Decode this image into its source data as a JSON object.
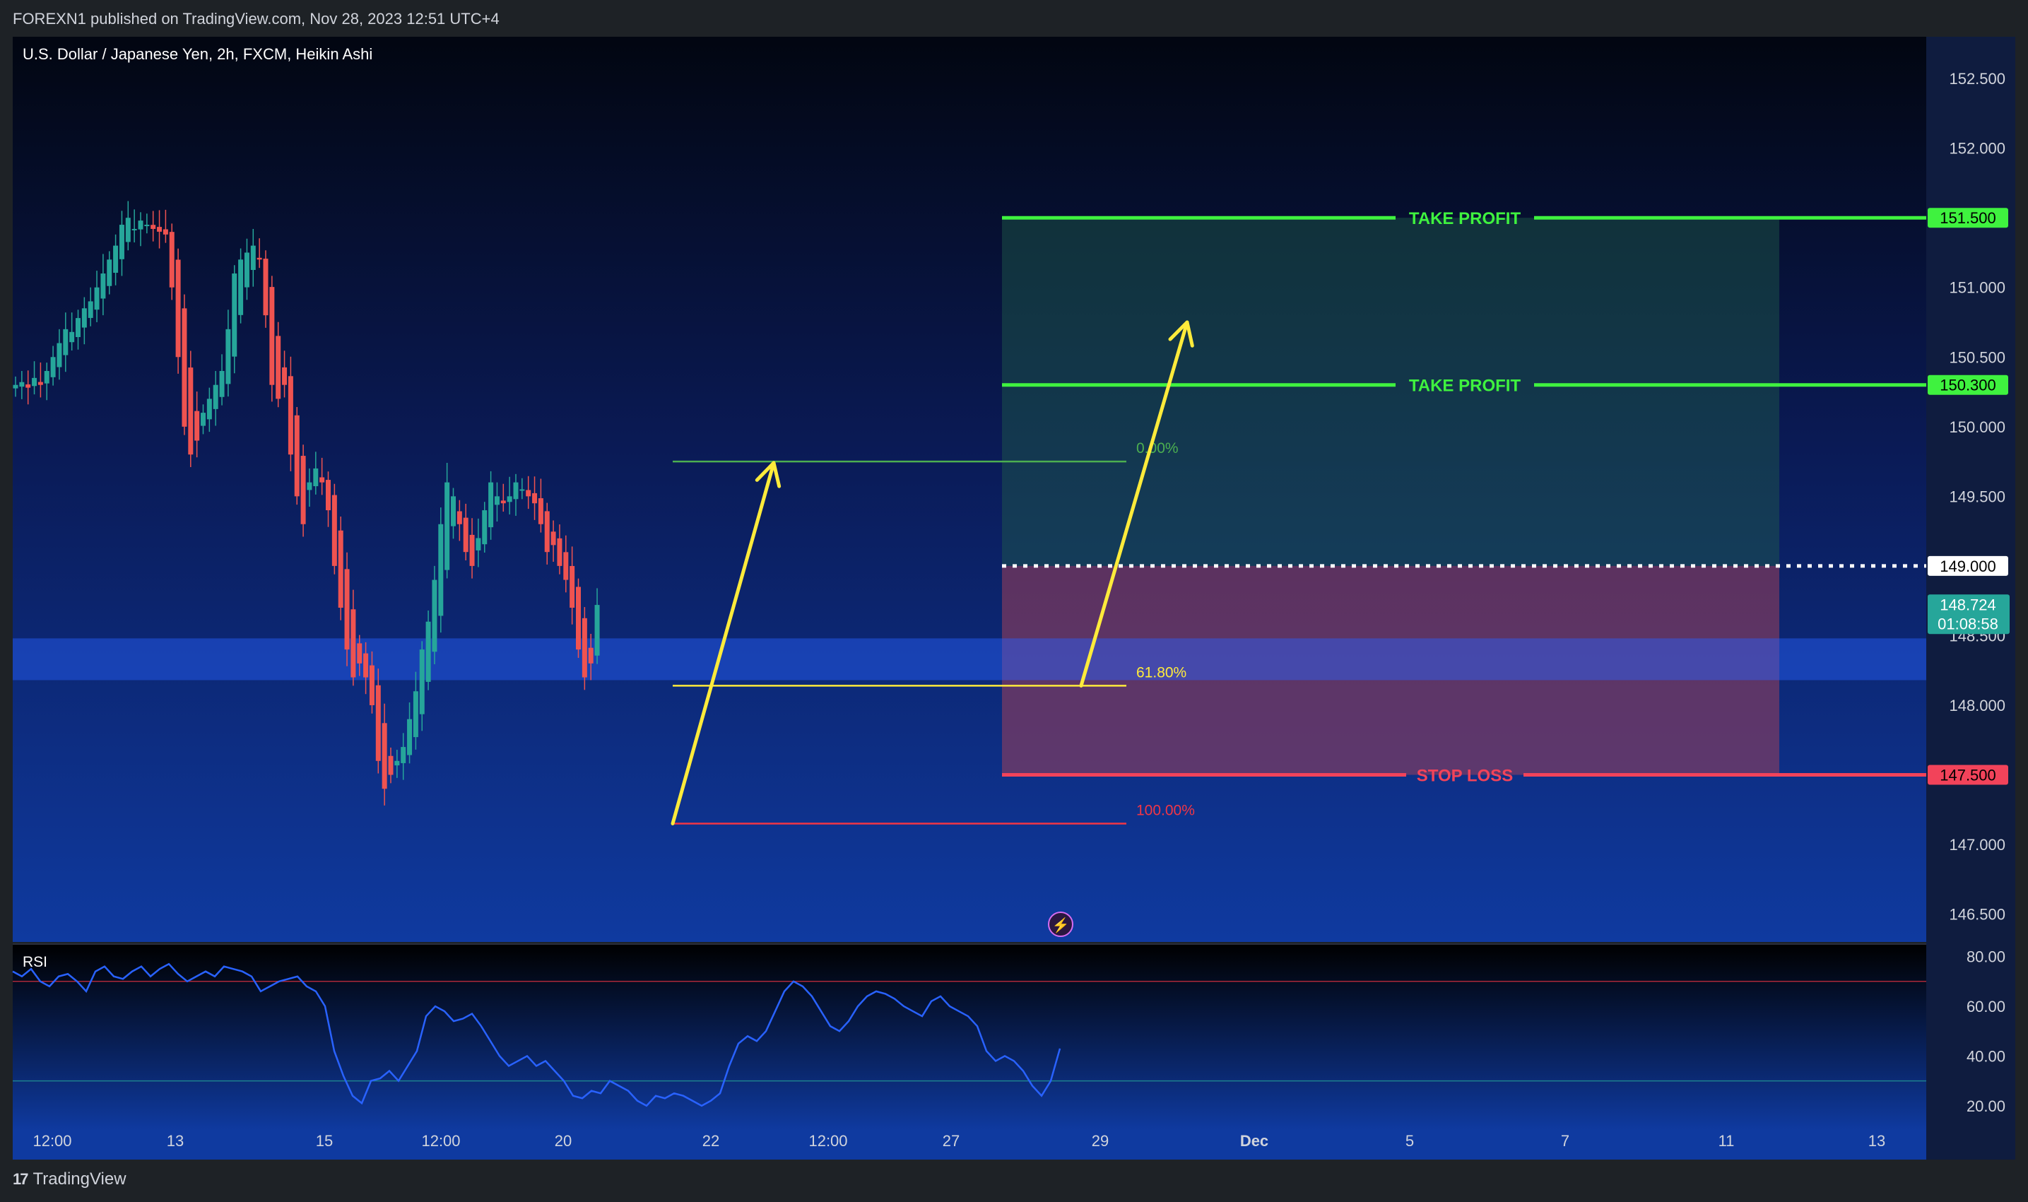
{
  "header": {
    "published": "FOREXN1 published on TradingView.com, Nov 28, 2023 12:51 UTC+4"
  },
  "footer": {
    "logo_mark": "17",
    "logo_text": "TradingView"
  },
  "colors": {
    "up": "#26a69a",
    "down": "#ef5350",
    "take_profit": "#3ff23f",
    "stop_loss": "#f2435a",
    "fib_top": "#4caf50",
    "fib_mid": "#ffeb3b",
    "fib_bottom": "#f23645",
    "arrow": "#ffeb3b",
    "rsi_line": "#2962ff"
  },
  "chart_data": [
    {
      "type": "candlestick",
      "title": "U.S. Dollar / Japanese Yen, 2h, FXCM, Heikin Ashi",
      "ylim": [
        146.3,
        152.8
      ],
      "y_ticks": [
        "152.500",
        "152.000",
        "151.500",
        "151.000",
        "150.500",
        "150.000",
        "149.500",
        "149.000",
        "148.500",
        "148.000",
        "147.500",
        "147.000",
        "146.500"
      ],
      "x_ticks": [
        "12:00",
        "13",
        "15",
        "12:00",
        "20",
        "22",
        "12:00",
        "27",
        "29",
        "Dec",
        "5",
        "7",
        "11",
        "13"
      ],
      "current_price": "148.724",
      "countdown": "01:08:58",
      "candles_close_trajectory": [
        150.3,
        150.32,
        150.28,
        150.35,
        150.3,
        150.4,
        150.5,
        150.6,
        150.7,
        150.68,
        150.78,
        150.85,
        150.9,
        151.0,
        151.1,
        151.2,
        151.3,
        151.45,
        151.5,
        151.42,
        151.48,
        151.45,
        151.42,
        151.4,
        151.38,
        151.0,
        150.5,
        150.0,
        149.8,
        149.9,
        150.1,
        150.2,
        150.3,
        150.4,
        150.7,
        151.1,
        151.2,
        151.25,
        151.3,
        151.2,
        150.8,
        150.3,
        150.2,
        150.3,
        149.8,
        149.5,
        149.3,
        149.6,
        149.7,
        149.6,
        149.4,
        149.0,
        148.7,
        148.4,
        148.2,
        148.3,
        148.2,
        148.0,
        147.6,
        147.4,
        147.5,
        147.6,
        147.7,
        147.9,
        148.1,
        148.4,
        148.6,
        148.9,
        149.3,
        149.6,
        149.5,
        149.3,
        149.1,
        149.0,
        149.2,
        149.4,
        149.6,
        149.5,
        149.45,
        149.5,
        149.6,
        149.55,
        149.5,
        149.45,
        149.3,
        149.1,
        149.15,
        149.0,
        148.9,
        148.7,
        148.4,
        148.2,
        148.3,
        148.72
      ],
      "levels": [
        {
          "label": "TAKE PROFIT",
          "price": 151.5,
          "tag": "151.500"
        },
        {
          "label": "TAKE PROFIT",
          "price": 150.3,
          "tag": "150.300"
        },
        {
          "label": "STOP LOSS",
          "price": 147.5,
          "tag": "147.500"
        },
        {
          "label": "",
          "price": 149.0,
          "tag": "149.000"
        }
      ],
      "fibonacci": [
        {
          "label": "0.00%",
          "price": 149.75
        },
        {
          "label": "61.80%",
          "price": 148.14
        },
        {
          "label": "100.00%",
          "price": 147.15
        }
      ],
      "zone": {
        "from": 148.18,
        "to": 148.48
      }
    },
    {
      "type": "line",
      "title": "RSI",
      "ylim": [
        10,
        85
      ],
      "y_ticks": [
        "80.00",
        "60.00",
        "40.00",
        "20.00"
      ],
      "bands": [
        70,
        30
      ],
      "values": [
        74,
        72,
        75,
        70,
        68,
        72,
        73,
        70,
        66,
        74,
        76,
        72,
        71,
        74,
        76,
        72,
        75,
        77,
        73,
        70,
        72,
        74,
        72,
        76,
        75,
        74,
        72,
        66,
        68,
        70,
        71,
        72,
        68,
        66,
        60,
        42,
        32,
        24,
        21,
        30,
        31,
        34,
        30,
        36,
        42,
        56,
        60,
        58,
        54,
        55,
        57,
        52,
        46,
        40,
        36,
        38,
        40,
        36,
        38,
        34,
        30,
        24,
        23,
        26,
        25,
        30,
        28,
        26,
        22,
        20,
        24,
        23,
        25,
        24,
        22,
        20,
        22,
        25,
        36,
        45,
        48,
        46,
        50,
        58,
        66,
        70,
        68,
        64,
        58,
        52,
        50,
        54,
        60,
        64,
        66,
        65,
        63,
        60,
        58,
        56,
        62,
        64,
        60,
        58,
        56,
        52,
        42,
        38,
        40,
        38,
        34,
        28,
        24,
        30,
        43
      ]
    }
  ]
}
